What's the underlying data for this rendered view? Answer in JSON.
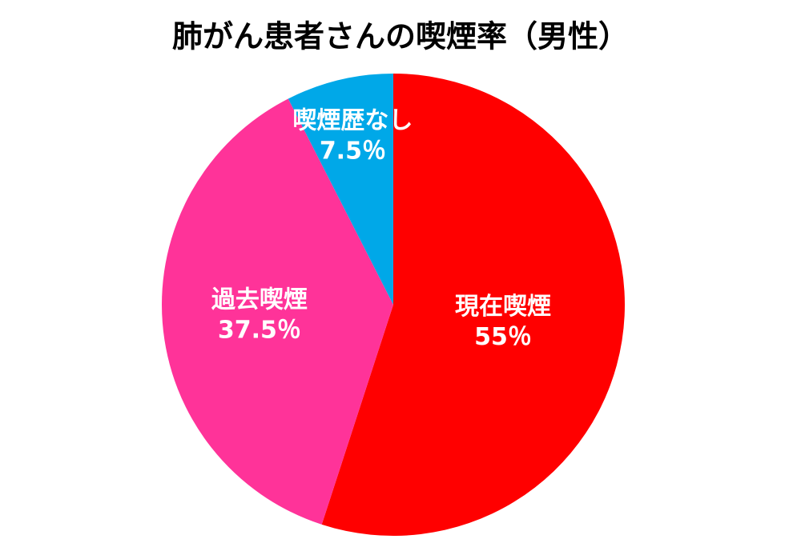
{
  "chart_data": {
    "type": "pie",
    "title": "肺がん患者さんの喫煙率（男性）",
    "categories": [
      "現在喫煙",
      "過去喫煙",
      "喫煙歴なし"
    ],
    "values": [
      55,
      37.5,
      7.5
    ],
    "value_labels": [
      "55％",
      "37.5％",
      "7.5％"
    ],
    "colors": [
      "#ff0000",
      "#ff3399",
      "#00a8e8"
    ]
  }
}
